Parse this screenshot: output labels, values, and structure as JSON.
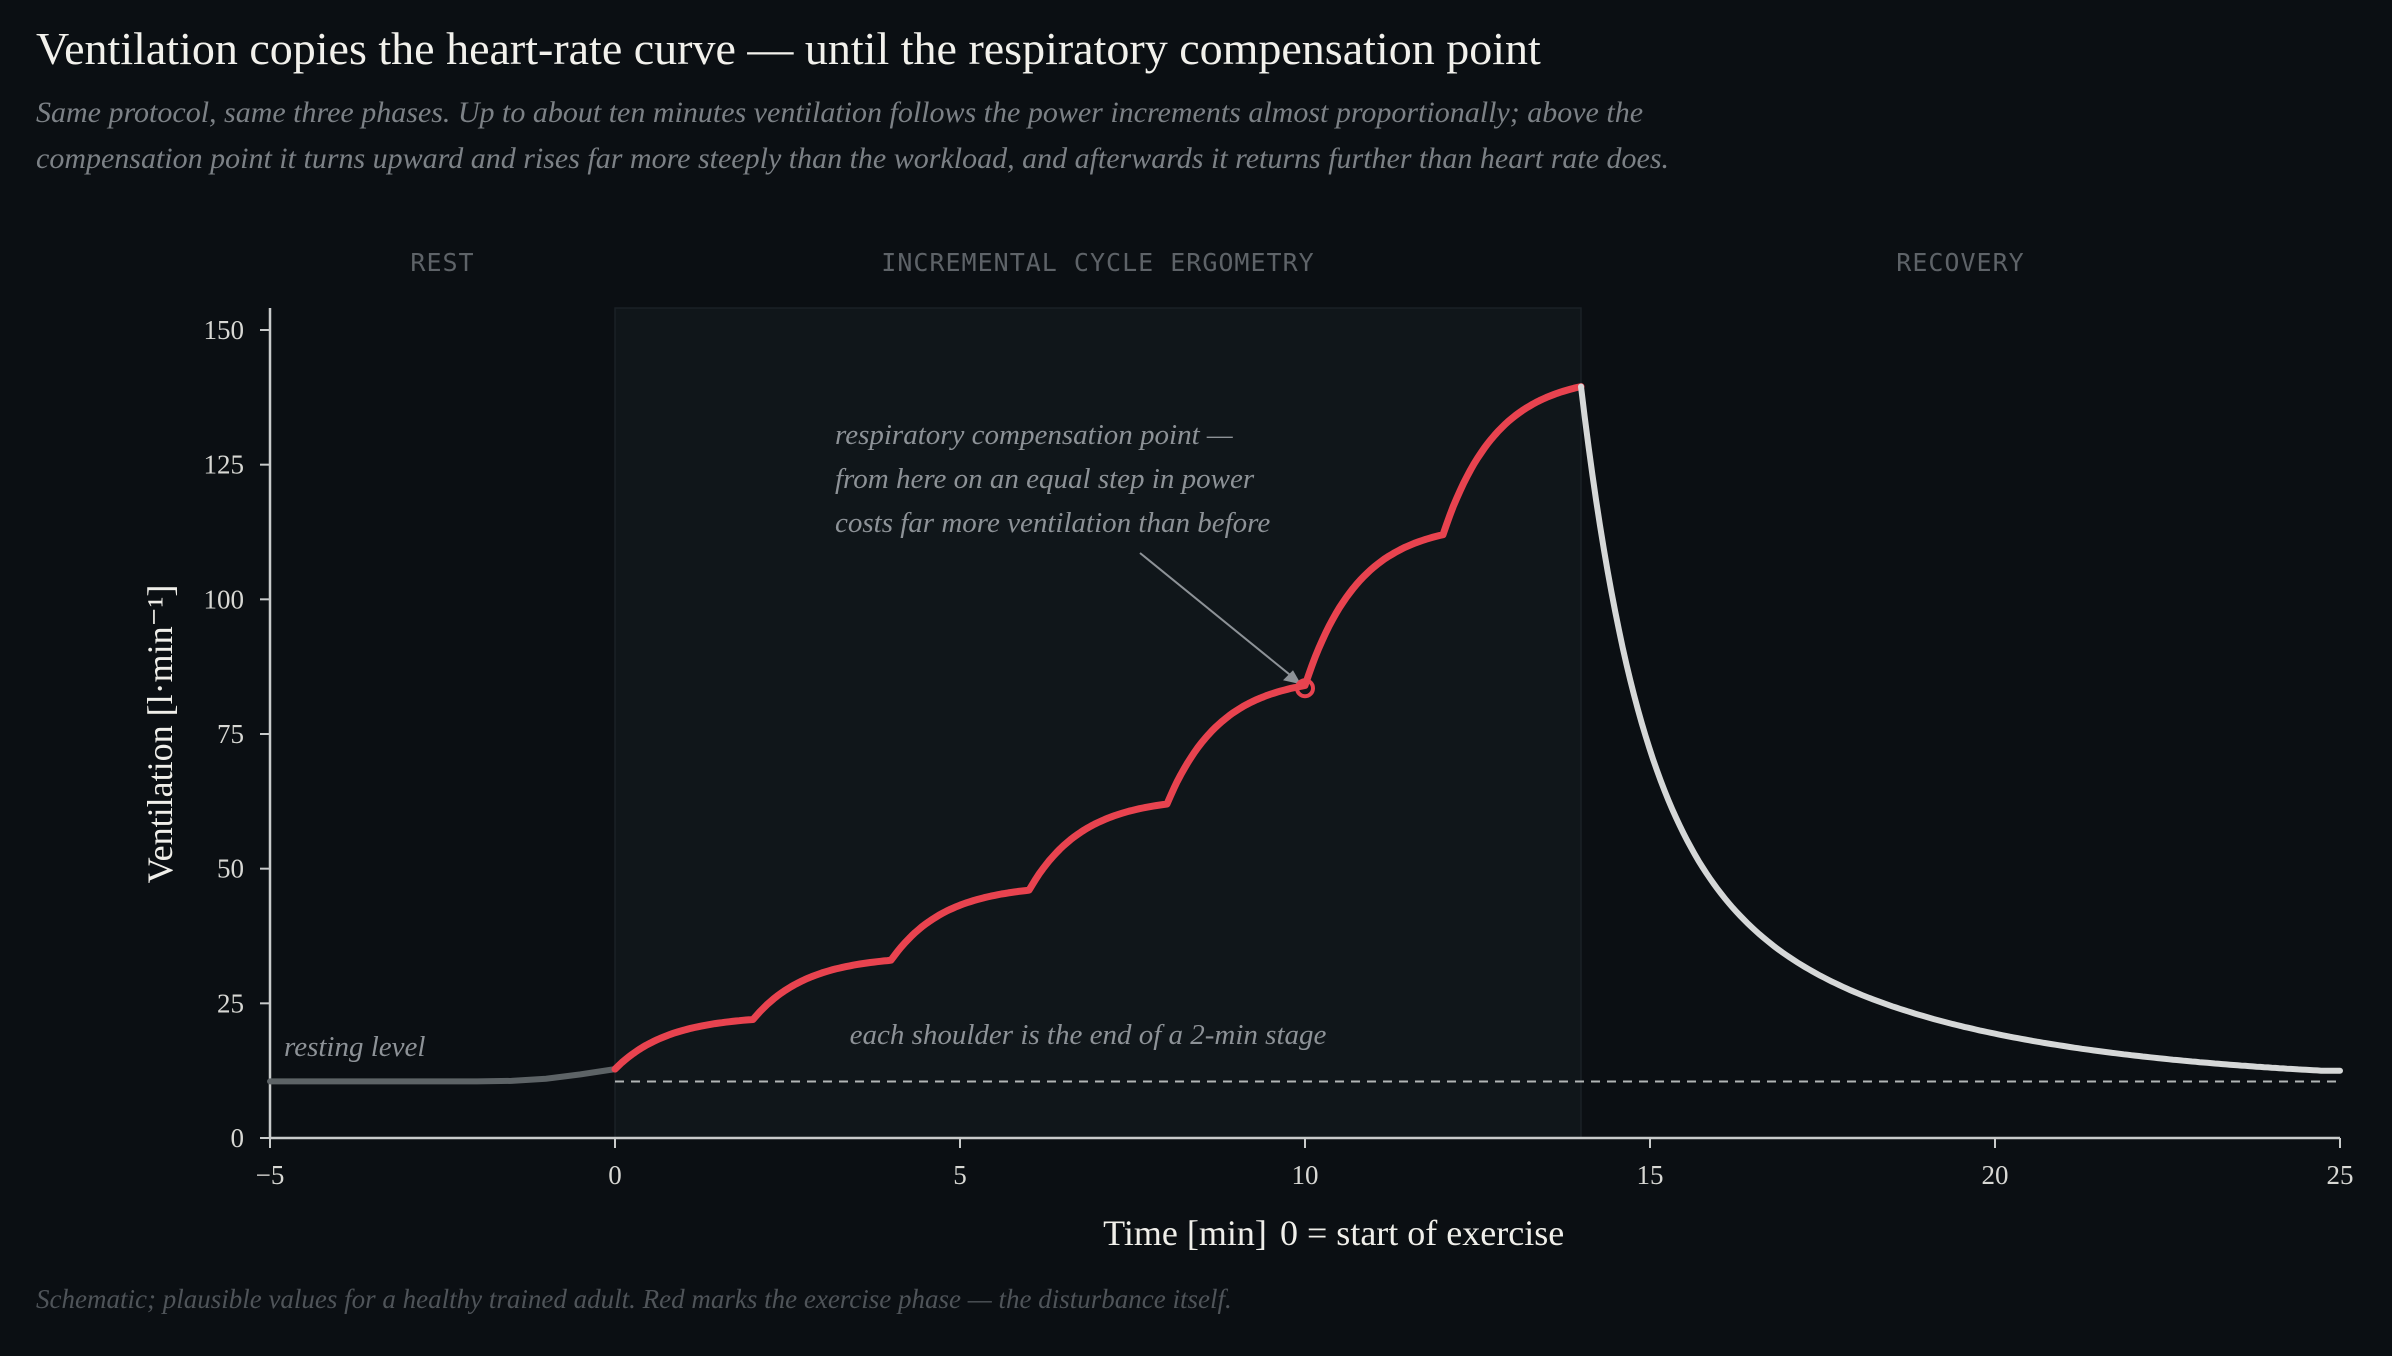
{
  "title": "Ventilation copies the heart-rate curve — until the respiratory compensation point",
  "subtitle": "Same protocol, same three phases. Up to about ten minutes ventilation follows the power increments almost proportionally; above the compensation point it turns upward and rises far more steeply than the workload, and afterwards it returns further than heart rate does.",
  "footer": "Schematic; plausible values for a healthy trained adult. Red marks the exercise phase — the disturbance itself.",
  "colors": {
    "background": "#0b0f13",
    "exercise_band": "#10161a",
    "exercise": "#e8434f",
    "rest": "#5d6366",
    "recovery": "#d6d8d8",
    "baseline": "#cfd2d2"
  },
  "chart_data": {
    "type": "line",
    "phases": [
      {
        "label": "REST",
        "from": -5,
        "to": 0
      },
      {
        "label": "INCREMENTAL CYCLE ERGOMETRY",
        "from": 0,
        "to": 14
      },
      {
        "label": "RECOVERY",
        "from": 14,
        "to": 25
      }
    ],
    "xlabel": "Time  [min]",
    "xlabel_note": "0 = start of exercise",
    "ylabel": "Ventilation  [l·min⁻¹]",
    "xlim": [
      -5,
      25
    ],
    "ylim": [
      0,
      150
    ],
    "x_ticks": [
      {
        "value": -5,
        "label": "−5"
      },
      {
        "value": 0,
        "label": "0"
      },
      {
        "value": 5,
        "label": "5"
      },
      {
        "value": 10,
        "label": "10"
      },
      {
        "value": 15,
        "label": "15"
      },
      {
        "value": 20,
        "label": "20"
      },
      {
        "value": 25,
        "label": "25"
      }
    ],
    "y_ticks": [
      {
        "value": 0,
        "label": "0"
      },
      {
        "value": 25,
        "label": "25"
      },
      {
        "value": 50,
        "label": "50"
      },
      {
        "value": 75,
        "label": "75"
      },
      {
        "value": 100,
        "label": "100"
      },
      {
        "value": 125,
        "label": "125"
      },
      {
        "value": 150,
        "label": "150"
      }
    ],
    "resting_level": 10.5,
    "series": [
      {
        "phase": "rest",
        "points": [
          [
            -5,
            10.5
          ],
          [
            -2,
            10.5
          ],
          [
            -1.5,
            10.6
          ],
          [
            -1,
            11.0
          ],
          [
            -0.5,
            11.8
          ],
          [
            0,
            12.8
          ]
        ]
      },
      {
        "phase": "exercise",
        "stage_start_values": [
          12.8,
          22.0,
          33.0,
          46.0,
          62.0,
          84.0,
          112.0
        ],
        "stage_end_values": [
          22.0,
          33.0,
          46.0,
          62.0,
          84.0,
          112.0,
          139.5
        ],
        "stage_minutes": 2,
        "points": [
          [
            0,
            12.8
          ],
          [
            2,
            22.0
          ],
          [
            4,
            33.0
          ],
          [
            6,
            46.0
          ],
          [
            8,
            62.0
          ],
          [
            10,
            84.0
          ],
          [
            12,
            112.0
          ],
          [
            14,
            139.5
          ]
        ]
      },
      {
        "phase": "recovery",
        "points": [
          [
            14,
            139.5
          ],
          [
            15,
            85
          ],
          [
            16,
            52
          ],
          [
            17,
            35
          ],
          [
            18,
            26
          ],
          [
            20,
            18
          ],
          [
            22,
            15
          ],
          [
            25,
            12.5
          ]
        ]
      }
    ],
    "annotations": [
      {
        "text": "resting level",
        "x": -4.8,
        "y": 14
      },
      {
        "lines": [
          "respiratory compensation point —",
          "from here on an equal step in power",
          "costs far more ventilation than before"
        ],
        "target_x": 10,
        "target_y": 83.5
      },
      {
        "text": "each shoulder is the end of a 2-min stage",
        "x": 6.8,
        "y": 16
      }
    ]
  }
}
